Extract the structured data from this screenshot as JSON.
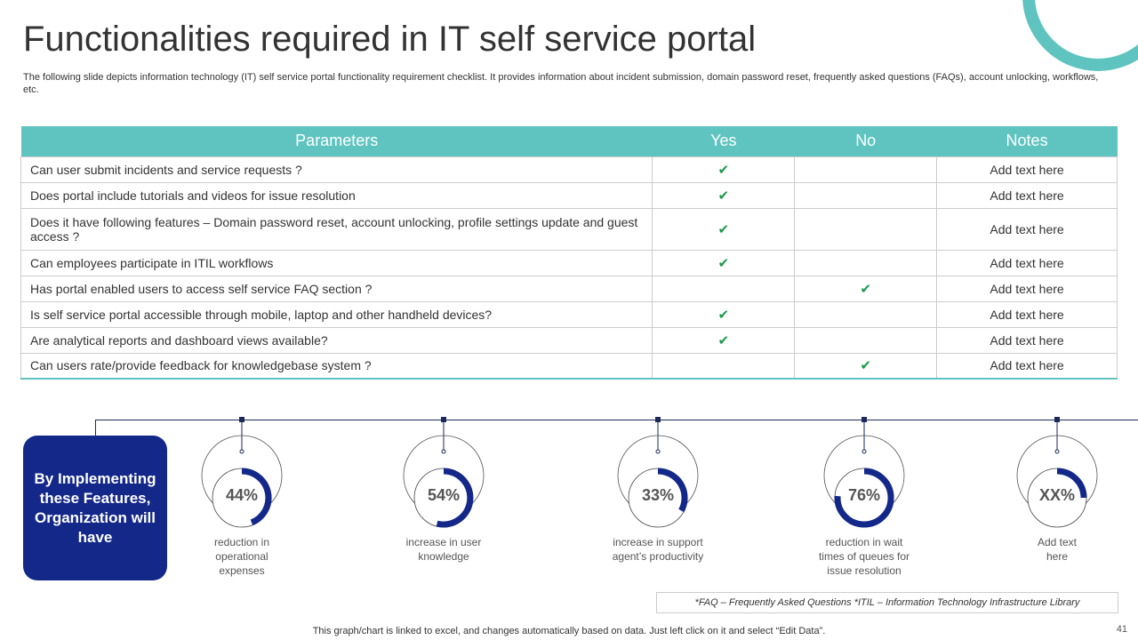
{
  "title": "Functionalities required in IT self service portal",
  "subtitle": "The following slide depicts information technology (IT) self service portal functionality requirement checklist. It provides information about incident submission, domain password reset, frequently asked questions (FAQs), account unlocking, workflows, etc.",
  "table": {
    "headers": [
      "Parameters",
      "Yes",
      "No",
      "Notes"
    ],
    "check": "✔",
    "rows": [
      {
        "param": "Can user submit incidents and service requests ?",
        "yes": "✔",
        "no": "",
        "notes": "Add text here"
      },
      {
        "param": "Does portal include tutorials and videos for issue resolution",
        "yes": "✔",
        "no": "",
        "notes": "Add text here"
      },
      {
        "param": "Does it have following features – Domain password reset, account unlocking, profile settings update and guest access ?",
        "yes": "✔",
        "no": "",
        "notes": "Add text here"
      },
      {
        "param": "Can employees participate in ITIL workflows",
        "yes": "✔",
        "no": "",
        "notes": "Add text here"
      },
      {
        "param": "Has portal enabled users to access self service FAQ section ?",
        "yes": "",
        "no": "✔",
        "notes": "Add text here"
      },
      {
        "param": "Is self service portal accessible through mobile, laptop and other handheld devices?",
        "yes": "✔",
        "no": "",
        "notes": "Add text here"
      },
      {
        "param": "Are analytical reports and dashboard views available?",
        "yes": "✔",
        "no": "",
        "notes": "Add text here"
      },
      {
        "param": "Can users rate/provide feedback for knowledgebase system ?",
        "yes": "",
        "no": "✔",
        "notes": "Add text here"
      }
    ]
  },
  "callout": "By Implementing these Features, Organization will have",
  "metrics": [
    {
      "label": "44%",
      "value": 44,
      "text": "reduction in operational expenses"
    },
    {
      "label": "54%",
      "value": 54,
      "text": "increase in user knowledge"
    },
    {
      "label": "33%",
      "value": 33,
      "text": "increase in support agent’s productivity"
    },
    {
      "label": "76%",
      "value": 76,
      "text": "reduction in wait times of queues for issue resolution"
    },
    {
      "label": "XX%",
      "value": 25,
      "text": "Add text here"
    }
  ],
  "footnote": "*FAQ – Frequently Asked Questions  *ITIL – Information Technology Infrastructure Library",
  "chart_note": "This graph/chart is linked to excel, and changes automatically based on data. Just left click on it and select “Edit Data”.",
  "page_number": "41",
  "colors": {
    "teal": "#5fc4c0",
    "navy": "#14288a",
    "check": "#1a9a4a"
  }
}
